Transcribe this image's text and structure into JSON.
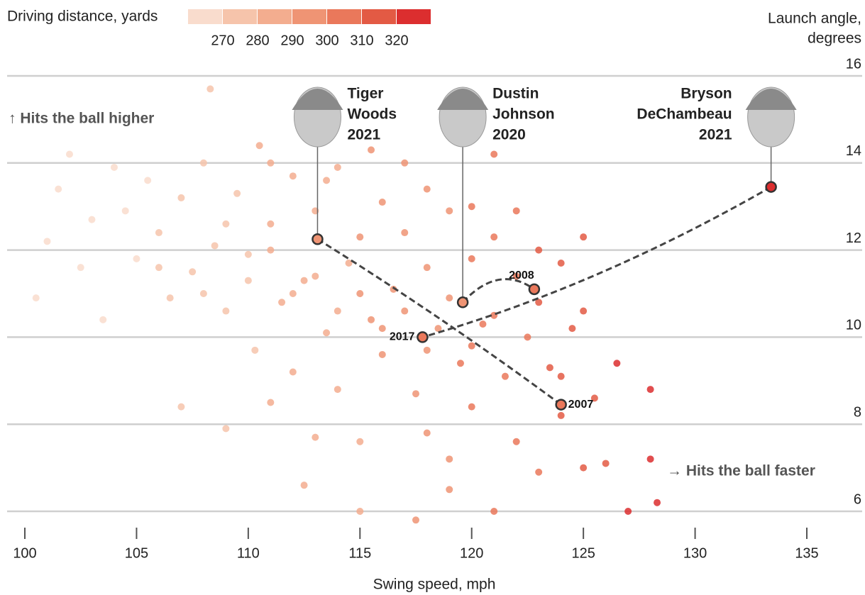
{
  "chart_data": {
    "type": "scatter",
    "color_title": "Driving distance, yards",
    "color_ticks": [
      270,
      280,
      290,
      300,
      310,
      320
    ],
    "color_scale": [
      "#f9dccd",
      "#f6c4ab",
      "#f3ad8f",
      "#ef9474",
      "#ea785b",
      "#e35a44",
      "#dc2e2f"
    ],
    "y_label": [
      "Launch angle,",
      "degrees"
    ],
    "x_label": "Swing speed, mph",
    "annotations": [
      "↑ Hits the ball higher",
      "→ Hits the ball faster"
    ],
    "xlim": [
      99,
      137
    ],
    "ylim": [
      5.8,
      16.4
    ],
    "xticks": [
      100,
      105,
      110,
      115,
      120,
      125,
      130,
      135
    ],
    "yticks": [
      6,
      8,
      10,
      12,
      14,
      16
    ],
    "grid": true,
    "points": {
      "x": [
        101,
        100.5,
        102,
        101.5,
        103,
        102.5,
        104,
        104.5,
        103.5,
        105,
        105.5,
        106,
        106.5,
        107,
        107.5,
        108,
        108.3,
        108.5,
        109,
        109.5,
        110,
        110.5,
        110.3,
        111,
        111.5,
        112,
        112.5,
        112,
        113,
        113.5,
        114,
        114.5,
        114,
        115,
        115.5,
        115,
        116,
        116.5,
        116,
        117,
        117.5,
        117,
        118,
        118.5,
        118,
        119,
        119.5,
        119,
        120,
        120.5,
        120,
        121,
        121,
        121.5,
        121,
        122,
        122.5,
        122,
        123,
        123.5,
        123,
        124,
        124.5,
        124,
        125,
        125,
        125,
        125.5,
        126,
        126.5,
        127,
        128,
        128,
        128.3,
        107,
        109,
        111,
        113,
        112.5,
        115,
        117.5,
        119,
        111,
        113.5,
        115.5,
        106,
        108,
        110,
        112,
        114,
        116,
        118,
        120,
        109,
        111,
        113,
        115,
        117,
        119,
        121,
        123,
        122,
        124,
        120,
        118
      ],
      "y": [
        12.2,
        10.9,
        14.2,
        13.4,
        12.7,
        11.6,
        13.9,
        12.9,
        10.4,
        11.8,
        13.6,
        12.4,
        10.9,
        13.2,
        11.5,
        14.0,
        15.7,
        12.1,
        10.6,
        13.3,
        11.9,
        14.4,
        9.7,
        12.6,
        10.8,
        13.7,
        11.3,
        9.2,
        12.9,
        10.1,
        13.9,
        11.7,
        8.8,
        12.3,
        10.4,
        7.6,
        13.1,
        11.1,
        9.6,
        12.4,
        8.7,
        14.0,
        11.6,
        10.2,
        7.8,
        12.9,
        9.4,
        7.2,
        11.8,
        10.3,
        8.4,
        14.2,
        12.3,
        9.1,
        6.0,
        11.4,
        10.0,
        7.6,
        12.0,
        9.3,
        6.9,
        11.7,
        10.2,
        8.2,
        12.3,
        10.6,
        7.0,
        8.6,
        7.1,
        9.4,
        6.0,
        8.8,
        7.2,
        6.2,
        8.4,
        7.9,
        8.5,
        7.7,
        6.6,
        6.0,
        5.8,
        6.5,
        14.0,
        13.6,
        14.3,
        11.6,
        11.0,
        11.3,
        11.0,
        10.6,
        10.2,
        9.7,
        9.8,
        12.6,
        12.0,
        11.4,
        11.0,
        10.6,
        10.9,
        10.5,
        10.8,
        12.9,
        9.1,
        13.0,
        13.4
      ],
      "distance": [
        262,
        260,
        262,
        263,
        265,
        264,
        266,
        267,
        265,
        268,
        269,
        270,
        271,
        272,
        273,
        274,
        272,
        275,
        276,
        277,
        279,
        280,
        279,
        281,
        282,
        283,
        284,
        283,
        285,
        286,
        287,
        289,
        287,
        290,
        291,
        289,
        292,
        293,
        292,
        295,
        295,
        294,
        297,
        298,
        296,
        299,
        300,
        298,
        302,
        303,
        301,
        305,
        304,
        305,
        303,
        307,
        308,
        306,
        310,
        311,
        309,
        313,
        314,
        312,
        318,
        316,
        315,
        317,
        318,
        320,
        325,
        322,
        323,
        326,
        271,
        275,
        280,
        284,
        283,
        288,
        294,
        297,
        281,
        286,
        290,
        270,
        274,
        279,
        283,
        287,
        292,
        296,
        301,
        276,
        281,
        285,
        290,
        294,
        299,
        304,
        310,
        307,
        313,
        302,
        297
      ]
    },
    "players": [
      {
        "label": [
          "Tiger",
          "Woods",
          "2021"
        ],
        "side": "right",
        "start": {
          "x": 113.1,
          "y": 12.25
        },
        "end": {
          "x": 124,
          "y": 8.45,
          "label": "2007",
          "side": "right"
        }
      },
      {
        "label": [
          "Dustin",
          "Johnson",
          "2020"
        ],
        "side": "right",
        "start": {
          "x": 119.6,
          "y": 10.8
        },
        "end": {
          "x": 122.8,
          "y": 11.1,
          "label": "2008",
          "side": "top"
        }
      },
      {
        "label": [
          "Bryson",
          "DeChambeau",
          "2021"
        ],
        "side": "left",
        "start": {
          "x": 133.4,
          "y": 13.45
        },
        "end": {
          "x": 117.8,
          "y": 10.0,
          "label": "2017",
          "side": "left"
        }
      }
    ]
  }
}
